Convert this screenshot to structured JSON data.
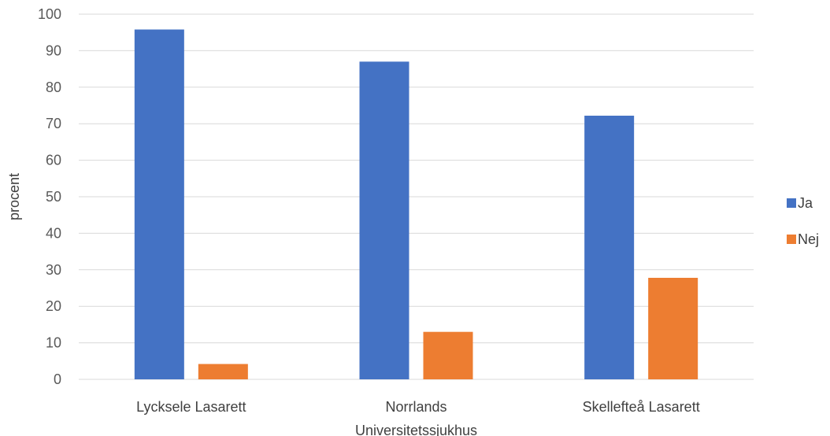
{
  "chart_data": {
    "type": "bar",
    "categories": [
      "Lycksele Lasarett",
      "Norrlands Universitetssjukhus",
      "Skellefteå Lasarett"
    ],
    "category_lines": [
      [
        "Lycksele Lasarett"
      ],
      [
        "Norrlands",
        "Universitetssjukhus"
      ],
      [
        "Skellefteå Lasarett"
      ]
    ],
    "series": [
      {
        "name": "Ja",
        "values": [
          95.8,
          87.0,
          72.2
        ],
        "color": "#4472c4"
      },
      {
        "name": "Nej",
        "values": [
          4.2,
          13.0,
          27.8
        ],
        "color": "#ed7d31"
      }
    ],
    "ylabel": "procent",
    "ylim": [
      0,
      100
    ],
    "yticks": [
      0,
      10,
      20,
      30,
      40,
      50,
      60,
      70,
      80,
      90,
      100
    ],
    "grid": true,
    "legend_position": "right"
  }
}
